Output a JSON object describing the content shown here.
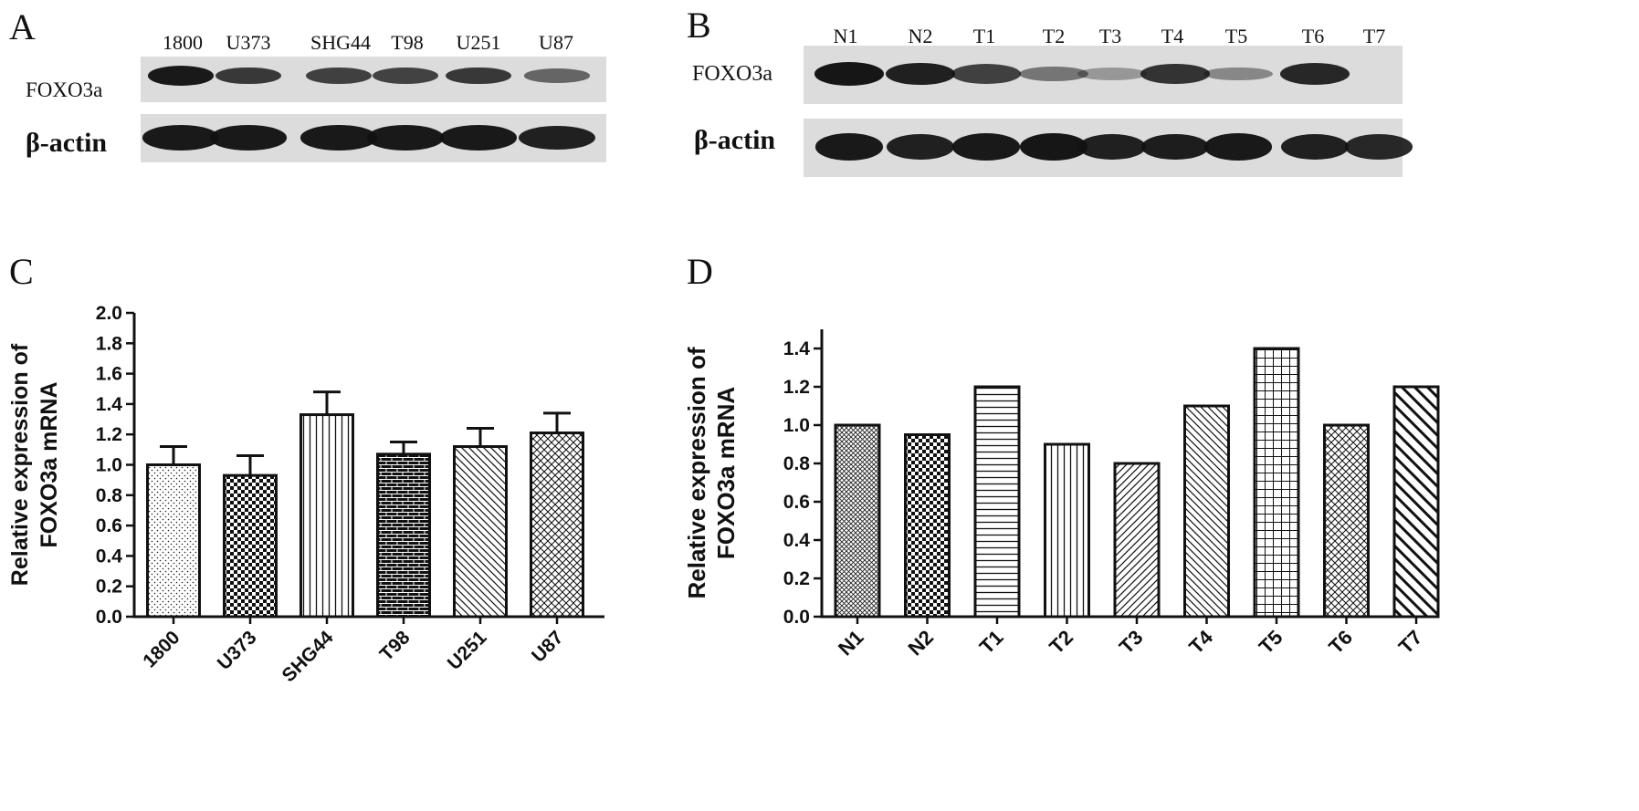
{
  "panels": {
    "A": {
      "letter": "A",
      "lanes": [
        "1800",
        "U373",
        "SHG44",
        "T98",
        "U251",
        "U87"
      ],
      "rows": [
        "FOXO3a",
        "β-actin"
      ],
      "foxo3a_band_intensity": [
        0.95,
        0.75,
        0.7,
        0.68,
        0.75,
        0.45
      ],
      "actin_band_intensity": [
        0.95,
        0.95,
        0.95,
        0.95,
        0.95,
        0.9
      ]
    },
    "B": {
      "letter": "B",
      "lanes": [
        "N1",
        "N2",
        "T1",
        "T2",
        "T3",
        "T4",
        "T5",
        "T6",
        "T7"
      ],
      "rows": [
        "FOXO3a",
        "β-actin"
      ],
      "foxo3a_band_intensity": [
        0.98,
        0.9,
        0.7,
        0.35,
        0.12,
        0.78,
        0.22,
        0.85,
        0.0
      ],
      "actin_band_intensity": [
        0.95,
        0.9,
        0.95,
        0.98,
        0.9,
        0.92,
        0.95,
        0.9,
        0.85
      ]
    },
    "C": {
      "letter": "C"
    },
    "D": {
      "letter": "D"
    }
  },
  "chart_data": [
    {
      "type": "bar",
      "panel": "C",
      "categories": [
        "1800",
        "U373",
        "SHG44",
        "T98",
        "U251",
        "U87"
      ],
      "values": [
        1.0,
        0.93,
        1.33,
        1.07,
        1.12,
        1.21
      ],
      "errors": [
        0.12,
        0.13,
        0.15,
        0.08,
        0.12,
        0.13
      ],
      "patterns": [
        "dots",
        "checker",
        "vlines",
        "brick",
        "diag-down",
        "crosshatch"
      ],
      "ylabel_line1": "Relative expression of",
      "ylabel_line2": "FOXO3a mRNA",
      "ylim": [
        0,
        2.0
      ],
      "yticks": [
        "0.0",
        "0.2",
        "0.4",
        "0.6",
        "0.8",
        "1.0",
        "1.2",
        "1.4",
        "1.6",
        "1.8",
        "2.0"
      ]
    },
    {
      "type": "bar",
      "panel": "D",
      "categories": [
        "N1",
        "N2",
        "T1",
        "T2",
        "T3",
        "T4",
        "T5",
        "T6",
        "T7"
      ],
      "values": [
        1.0,
        0.95,
        1.2,
        0.9,
        0.8,
        1.1,
        1.4,
        1.0,
        1.2
      ],
      "patterns": [
        "crosshatch-fine",
        "checker",
        "hlines",
        "vlines",
        "diag-up",
        "diag-down",
        "grid",
        "crosshatch",
        "diag-down-bold"
      ],
      "ylabel_line1": "Relative expression of",
      "ylabel_line2": "FOXO3a mRNA",
      "ylim": [
        0,
        1.5
      ],
      "yticks": [
        "0.0",
        "0.2",
        "0.4",
        "0.6",
        "0.8",
        "1.0",
        "1.2",
        "1.4"
      ]
    }
  ]
}
